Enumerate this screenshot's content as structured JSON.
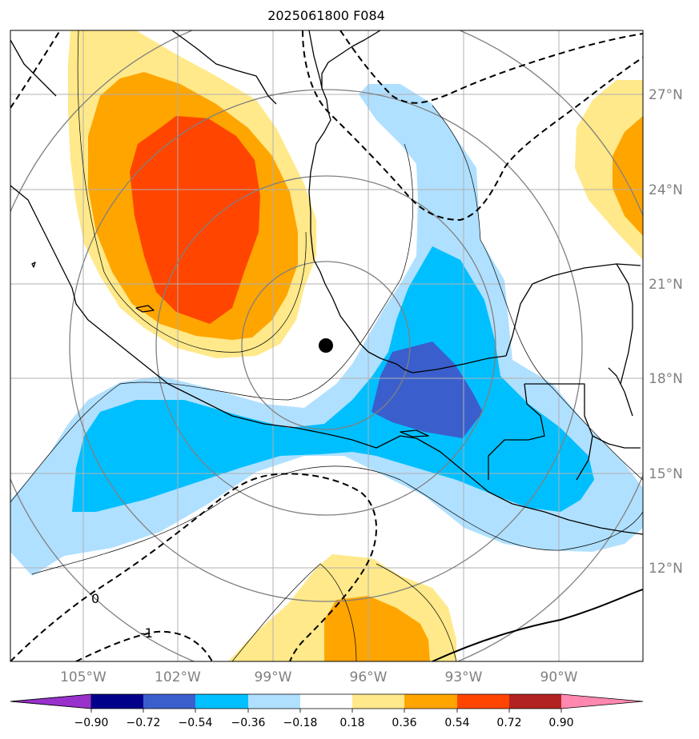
{
  "title": "2025061800 F084",
  "map": {
    "lon_labels": [
      "105°W",
      "102°W",
      "99°W",
      "96°W",
      "93°W",
      "90°W"
    ],
    "lat_labels": [
      "27°N",
      "24°N",
      "21°N",
      "18°N",
      "15°N",
      "12°N"
    ],
    "contour_labels": [
      "0",
      "-1"
    ],
    "marker": "black-dot",
    "colors": {
      "c_neg_0_90_below": "#9932cc",
      "c_neg_0_90": "#00008b",
      "c_neg_0_72": "#3a5fcd",
      "c_neg_0_54": "#00bfff",
      "c_neg_0_36": "#b0e0ff",
      "c_neutral": "#ffffff",
      "c_pos_0_18": "#ffe98a",
      "c_pos_0_36": "#ffa500",
      "c_pos_0_54": "#ff4500",
      "c_pos_0_72": "#b22222",
      "c_pos_0_90_above": "#ff88b0"
    }
  },
  "colorbar": {
    "tick_labels": [
      "−0.90",
      "−0.72",
      "−0.54",
      "−0.36",
      "−0.18",
      "0.18",
      "0.36",
      "0.54",
      "0.72",
      "0.90"
    ]
  }
}
